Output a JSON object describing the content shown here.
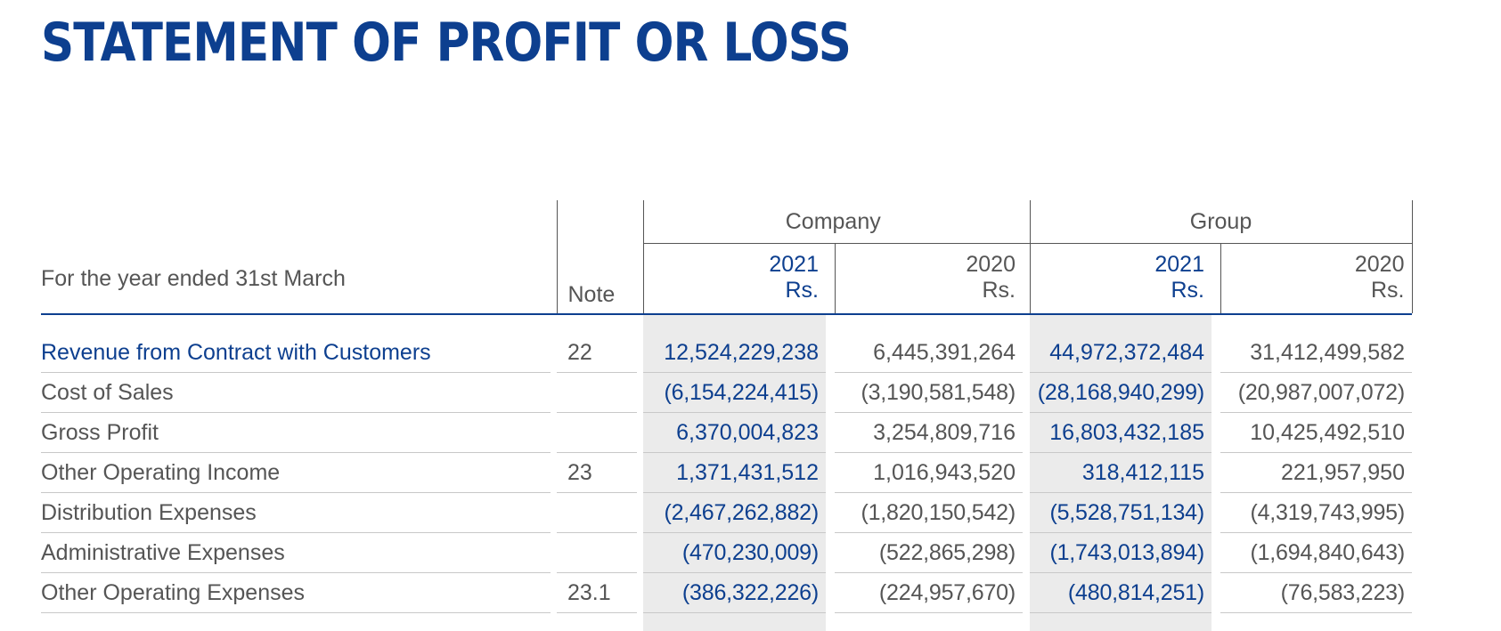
{
  "title": "STATEMENT OF PROFIT OR LOSS",
  "header": {
    "period_label": "For the year ended 31st March",
    "note_label": "Note",
    "company_label": "Company",
    "group_label": "Group",
    "year_current": "2021",
    "year_prior": "2020",
    "currency": "Rs."
  },
  "rows": [
    {
      "label": "Revenue from Contract with Customers",
      "note": "22",
      "company_2021": "12,524,229,238",
      "company_2020": "6,445,391,264",
      "group_2021": "44,972,372,484",
      "group_2020": "31,412,499,582"
    },
    {
      "label": "Cost of Sales",
      "note": "",
      "company_2021": "(6,154,224,415)",
      "company_2020": "(3,190,581,548)",
      "group_2021": "(28,168,940,299)",
      "group_2020": "(20,987,007,072)"
    },
    {
      "label": "Gross Profit",
      "note": "",
      "company_2021": "6,370,004,823",
      "company_2020": "3,254,809,716",
      "group_2021": "16,803,432,185",
      "group_2020": "10,425,492,510"
    },
    {
      "label": "Other Operating Income",
      "note": "23",
      "company_2021": "1,371,431,512",
      "company_2020": "1,016,943,520",
      "group_2021": "318,412,115",
      "group_2020": "221,957,950"
    },
    {
      "label": "Distribution Expenses",
      "note": "",
      "company_2021": "(2,467,262,882)",
      "company_2020": "(1,820,150,542)",
      "group_2021": "(5,528,751,134)",
      "group_2020": "(4,319,743,995)"
    },
    {
      "label": "Administrative Expenses",
      "note": "",
      "company_2021": "(470,230,009)",
      "company_2020": "(522,865,298)",
      "group_2021": "(1,743,013,894)",
      "group_2020": "(1,694,840,643)"
    },
    {
      "label": "Other Operating Expenses",
      "note": "23.1",
      "company_2021": "(386,322,226)",
      "company_2020": "(224,957,670)",
      "group_2021": "(480,814,251)",
      "group_2020": "(76,583,223)"
    }
  ]
}
